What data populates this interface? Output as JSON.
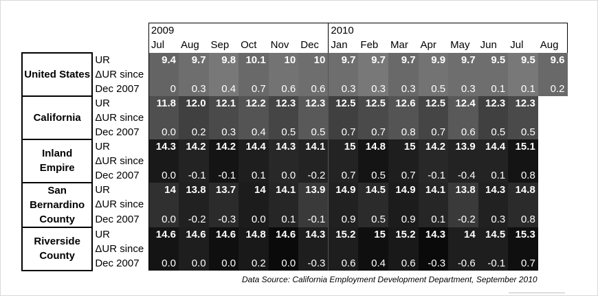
{
  "years": [
    "2009",
    "2010"
  ],
  "months": [
    "Jul",
    "Aug",
    "Sep",
    "Oct",
    "Nov",
    "Dec",
    "Jan",
    "Feb",
    "Mar",
    "Apr",
    "May",
    "Jun",
    "Jul",
    "Aug"
  ],
  "row_labels": {
    "ur": "UR",
    "dur_1": "ΔUR since",
    "dur_2": "Dec 2007"
  },
  "regions": [
    {
      "name": "United States",
      "bg": "#6e6e6e",
      "ur": [
        "9.4",
        "9.7",
        "9.8",
        "10.1",
        "10",
        "10",
        "9.7",
        "9.7",
        "9.7",
        "9.9",
        "9.7",
        "9.5",
        "9.5",
        "9.6"
      ],
      "dur": [
        "0",
        "0.3",
        "0.4",
        "0.7",
        "0.6",
        "0.6",
        "0.3",
        "0.3",
        "0.3",
        "0.5",
        "0.3",
        "0.1",
        "0.1",
        "0.2"
      ]
    },
    {
      "name": "California",
      "bg": "#4a4a4a",
      "ur": [
        "11.8",
        "12.0",
        "12.1",
        "12.2",
        "12.3",
        "12.3",
        "12.5",
        "12.5",
        "12.6",
        "12.5",
        "12.4",
        "12.3",
        "12.3",
        ""
      ],
      "dur": [
        "0.0",
        "0.2",
        "0.3",
        "0.4",
        "0.5",
        "0.5",
        "0.7",
        "0.7",
        "0.8",
        "0.7",
        "0.6",
        "0.5",
        "0.5",
        ""
      ]
    },
    {
      "name": "Inland Empire",
      "bg": "#1e1e1e",
      "ur": [
        "14.3",
        "14.2",
        "14.2",
        "14.4",
        "14.3",
        "14.1",
        "15",
        "14.8",
        "15",
        "14.2",
        "13.9",
        "14.4",
        "15.1",
        ""
      ],
      "dur": [
        "0.0",
        "-0.1",
        "-0.1",
        "0.1",
        "0.0",
        "-0.2",
        "0.7",
        "0.5",
        "0.7",
        "-0.1",
        "-0.4",
        "0.1",
        "0.8",
        ""
      ]
    },
    {
      "name": "San Bernardino County",
      "bg": "#262626",
      "ur": [
        "14",
        "13.8",
        "13.7",
        "14",
        "14.1",
        "13.9",
        "14.9",
        "14.5",
        "14.9",
        "14.1",
        "13.8",
        "14.3",
        "14.8",
        ""
      ],
      "dur": [
        "0.0",
        "-0.2",
        "-0.3",
        "0.0",
        "0.1",
        "-0.1",
        "0.9",
        "0.5",
        "0.9",
        "0.1",
        "-0.2",
        "0.3",
        "0.8",
        ""
      ]
    },
    {
      "name": "Riverside County",
      "bg": "#141414",
      "ur": [
        "14.6",
        "14.6",
        "14.6",
        "14.8",
        "14.6",
        "14.3",
        "15.2",
        "15",
        "15.2",
        "14.3",
        "14",
        "14.5",
        "15.3",
        ""
      ],
      "dur": [
        "0.0",
        "0.0",
        "0.0",
        "0.2",
        "0.0",
        "-0.3",
        "0.6",
        "0.4",
        "0.6",
        "-0.3",
        "-0.6",
        "-0.1",
        "0.7",
        ""
      ]
    }
  ],
  "source": "Data Source: California Employment Development Department, September 2010"
}
